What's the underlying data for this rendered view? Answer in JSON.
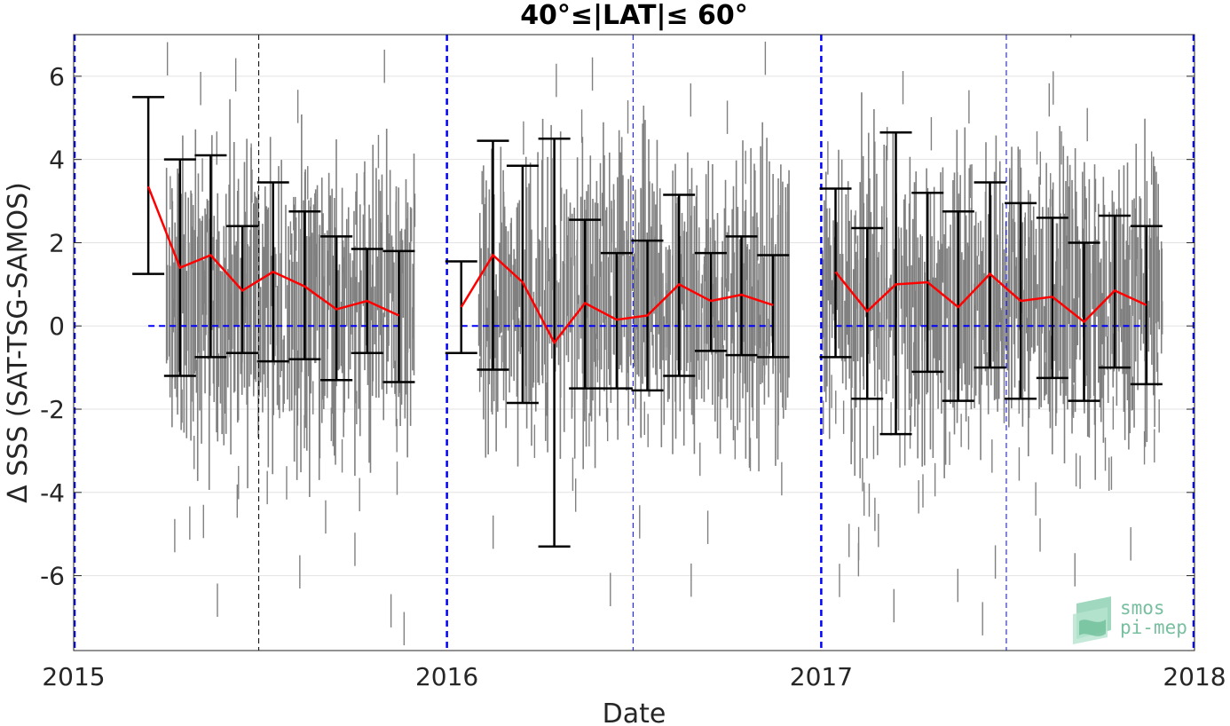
{
  "chart_data": {
    "type": "scatter",
    "title": "40°≤|LAT|≤ 60°",
    "xlabel": "Date",
    "ylabel": "Δ SSS (SAT-TSG-SAMOS)",
    "xlim": [
      "2015-01-01",
      "2018-01-01"
    ],
    "ylim": [
      -7.8,
      7
    ],
    "xticks": [
      "2015",
      "2016",
      "2017",
      "2018"
    ],
    "yticks": [
      -6,
      -4,
      -2,
      0,
      2,
      4,
      6
    ],
    "grid": true,
    "colors": {
      "scatter": "#808080",
      "mean_line": "#ff0000",
      "error_bars": "#000000",
      "zero_line": "#0000ff",
      "year_lines": "#0000ff",
      "midyear_line_2015": "#000000"
    },
    "year_boundaries": [
      "2015-01-01",
      "2016-01-01",
      "2017-01-01",
      "2018-01-01"
    ],
    "midyear_lines": [
      "2015-07-01",
      "2016-07-01",
      "2017-07-01"
    ],
    "zero_line_segments": [
      [
        "2015-03-15",
        "2015-11-15"
      ],
      [
        "2016-01-15",
        "2016-11-15"
      ],
      [
        "2017-01-15",
        "2017-11-15"
      ]
    ],
    "series": [
      {
        "name": "monthly_mean_2015",
        "x": [
          "2015-03-15",
          "2015-04-15",
          "2015-05-15",
          "2015-06-15",
          "2015-07-15",
          "2015-08-15",
          "2015-09-15",
          "2015-10-15",
          "2015-11-15"
        ],
        "mean": [
          3.35,
          1.4,
          1.7,
          0.85,
          1.3,
          0.95,
          0.4,
          0.6,
          0.25
        ],
        "upper": [
          5.5,
          4.0,
          4.1,
          2.4,
          3.45,
          2.75,
          2.15,
          1.85,
          1.8
        ],
        "lower": [
          1.25,
          -1.2,
          -0.75,
          -0.65,
          -0.85,
          -0.8,
          -1.3,
          -0.65,
          -1.35
        ]
      },
      {
        "name": "monthly_mean_2016",
        "x": [
          "2016-01-15",
          "2016-02-15",
          "2016-03-15",
          "2016-04-15",
          "2016-05-15",
          "2016-06-15",
          "2016-07-15",
          "2016-08-15",
          "2016-09-15",
          "2016-10-15",
          "2016-11-15"
        ],
        "mean": [
          0.45,
          1.7,
          1.05,
          -0.4,
          0.55,
          0.15,
          0.25,
          1.0,
          0.6,
          0.75,
          0.5
        ],
        "upper": [
          1.55,
          4.45,
          3.85,
          4.5,
          2.55,
          1.75,
          2.05,
          3.15,
          1.75,
          2.15,
          1.7
        ],
        "lower": [
          -0.65,
          -1.05,
          -1.85,
          -5.3,
          -1.5,
          -1.5,
          -1.55,
          -1.2,
          -0.6,
          -0.7,
          -0.75
        ]
      },
      {
        "name": "monthly_mean_2017",
        "x": [
          "2017-01-15",
          "2017-02-15",
          "2017-03-15",
          "2017-04-15",
          "2017-05-15",
          "2017-06-15",
          "2017-07-15",
          "2017-08-15",
          "2017-09-15",
          "2017-10-15",
          "2017-11-15"
        ],
        "mean": [
          1.3,
          0.35,
          1.0,
          1.05,
          0.45,
          1.25,
          0.6,
          0.7,
          0.1,
          0.85,
          0.5
        ],
        "upper": [
          3.3,
          2.35,
          4.65,
          3.2,
          2.75,
          3.45,
          2.95,
          2.6,
          2.0,
          2.65,
          2.4
        ],
        "lower": [
          -0.75,
          -1.75,
          -2.6,
          -1.1,
          -1.8,
          -1.0,
          -1.75,
          -1.25,
          -1.8,
          -1.0,
          -1.4
        ]
      }
    ],
    "scatter_density": {
      "description_hidden": false,
      "data_months": [
        "2015-04",
        "2015-05",
        "2015-06",
        "2015-07",
        "2015-08",
        "2015-09",
        "2015-10",
        "2015-11",
        "2016-02",
        "2016-03",
        "2016-04",
        "2016-05",
        "2016-06",
        "2016-07",
        "2016-08",
        "2016-09",
        "2016-10",
        "2016-11",
        "2017-01",
        "2017-02",
        "2017-03",
        "2017-04",
        "2017-05",
        "2017-06",
        "2017-07",
        "2017-08",
        "2017-09",
        "2017-10",
        "2017-11"
      ]
    }
  },
  "logo": {
    "line1": "smos",
    "line2": "pi-mep"
  }
}
